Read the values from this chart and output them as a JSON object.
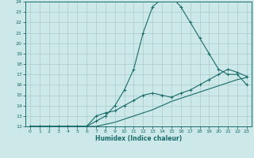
{
  "xlabel": "Humidex (Indice chaleur)",
  "bg_color": "#cce8e8",
  "grid_color": "#aacccc",
  "line_color": "#1a6b6b",
  "xlim": [
    -0.5,
    23.5
  ],
  "ylim": [
    12,
    24
  ],
  "xticks": [
    0,
    1,
    2,
    3,
    4,
    5,
    6,
    7,
    8,
    9,
    10,
    11,
    12,
    13,
    14,
    15,
    16,
    17,
    18,
    19,
    20,
    21,
    22,
    23
  ],
  "yticks": [
    12,
    13,
    14,
    15,
    16,
    17,
    18,
    19,
    20,
    21,
    22,
    23,
    24
  ],
  "series": [
    {
      "x": [
        0,
        1,
        2,
        3,
        4,
        5,
        6,
        7,
        8,
        9,
        10,
        11,
        12,
        13,
        14,
        15,
        16,
        17,
        18,
        19,
        20,
        21,
        22,
        23
      ],
      "y": [
        12,
        12,
        12,
        12,
        12,
        12,
        12,
        12,
        12.2,
        12.4,
        12.7,
        13,
        13.3,
        13.6,
        14,
        14.4,
        14.7,
        15,
        15.3,
        15.6,
        15.9,
        16.2,
        16.5,
        16.7
      ],
      "marker": false
    },
    {
      "x": [
        0,
        1,
        2,
        3,
        4,
        5,
        6,
        7,
        8,
        9,
        10,
        11,
        12,
        13,
        14,
        15,
        16,
        17,
        18,
        19,
        20,
        21,
        22,
        23
      ],
      "y": [
        12,
        12,
        12,
        12,
        12,
        12,
        12,
        12.5,
        13,
        14,
        15.5,
        17.5,
        21,
        23.5,
        24.3,
        24.5,
        23.5,
        22,
        20.5,
        19,
        17.5,
        17,
        17,
        16
      ],
      "marker": true
    },
    {
      "x": [
        0,
        1,
        2,
        3,
        4,
        5,
        6,
        7,
        8,
        9,
        10,
        11,
        12,
        13,
        14,
        15,
        16,
        17,
        18,
        19,
        20,
        21,
        22,
        23
      ],
      "y": [
        12,
        12,
        12,
        12,
        12,
        12,
        12,
        13,
        13.3,
        13.5,
        14,
        14.5,
        15,
        15.2,
        15,
        14.8,
        15.2,
        15.5,
        16,
        16.5,
        17,
        17.5,
        17.2,
        16.8
      ],
      "marker": true
    }
  ]
}
